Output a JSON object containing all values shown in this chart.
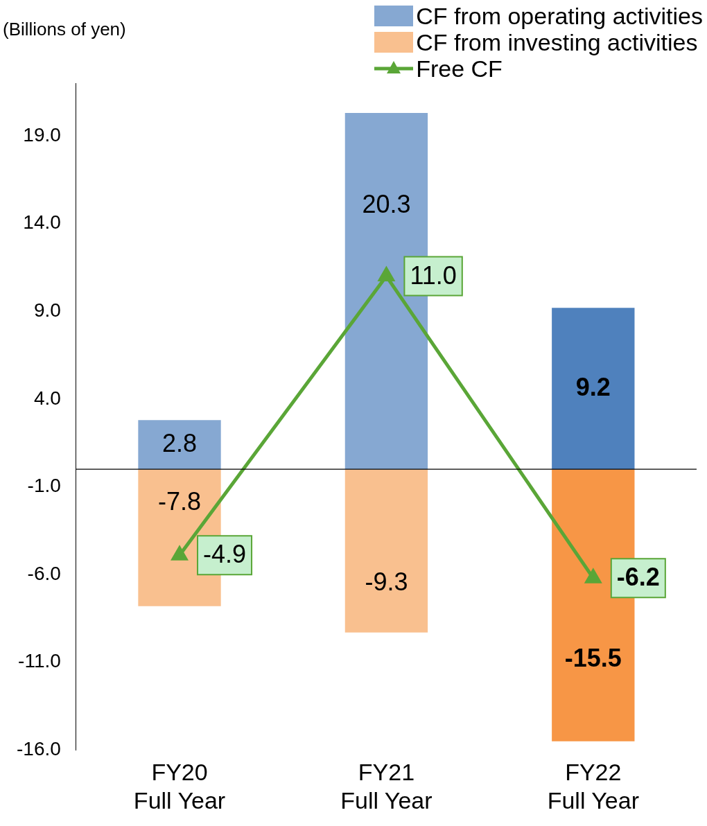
{
  "chart_data": {
    "type": "bar",
    "ylabel": "(Billions of yen)",
    "categories": [
      "FY20\nFull Year",
      "FY21\nFull Year",
      "FY22\nFull Year"
    ],
    "series": [
      {
        "name": "CF from operating activities",
        "color": "#86a8d2",
        "colors": [
          "#86a8d2",
          "#86a8d2",
          "#4f81bd"
        ],
        "values": [
          2.8,
          20.3,
          9.2
        ],
        "value_labels": [
          "2.8",
          "20.3",
          "9.2"
        ]
      },
      {
        "name": "CF from investing activities",
        "color": "#f9c08f",
        "colors": [
          "#f9c08f",
          "#f9c08f",
          "#f79646"
        ],
        "values": [
          -7.8,
          -9.3,
          -15.5
        ],
        "value_labels": [
          "-7.8",
          "-9.3",
          "-15.5"
        ]
      },
      {
        "name": "Free CF",
        "type": "line",
        "color": "#5aa637",
        "values": [
          -4.9,
          11.0,
          -6.2
        ],
        "value_labels": [
          "-4.9",
          "11.0",
          "-6.2"
        ]
      }
    ],
    "stacked": true,
    "legend": "top right",
    "grid": false,
    "marker": "triangle",
    "line_style": "solid",
    "ylim": [
      -16,
      22
    ],
    "yticks": [
      {
        "value": -16,
        "label": "-16.0"
      },
      {
        "value": -11,
        "label": "-11.0"
      },
      {
        "value": -6,
        "label": "-6.0"
      },
      {
        "value": -1,
        "label": "-1.0"
      },
      {
        "value": 4,
        "label": "4.0"
      },
      {
        "value": 9,
        "label": "9.0"
      },
      {
        "value": 14,
        "label": "14.0"
      },
      {
        "value": 19,
        "label": "19.0"
      }
    ]
  }
}
